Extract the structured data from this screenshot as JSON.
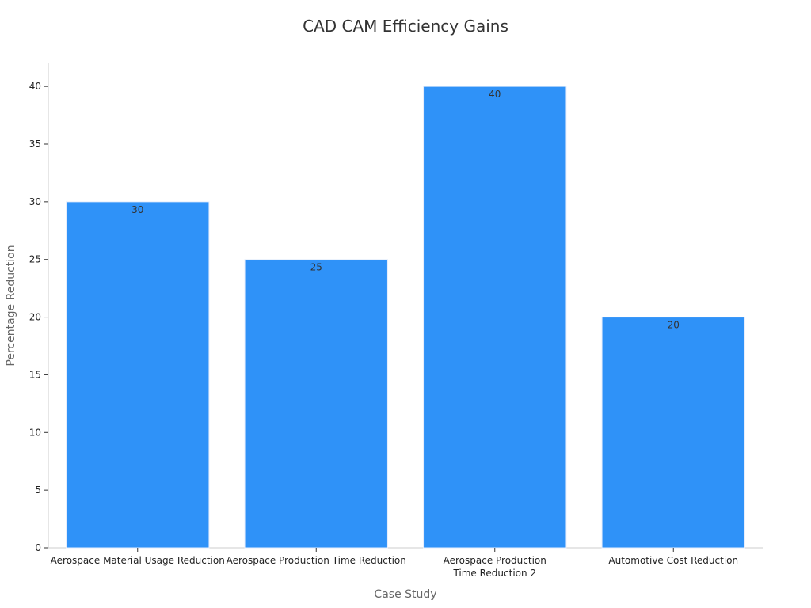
{
  "chart_data": {
    "type": "bar",
    "title": "CAD CAM Efficiency Gains",
    "xlabel": "Case Study",
    "ylabel": "Percentage Reduction",
    "categories": [
      [
        "Aerospace Material Usage Reduction"
      ],
      [
        "Aerospace Production Time Reduction"
      ],
      [
        "Aerospace Production",
        "Time Reduction 2"
      ],
      [
        "Automotive Cost Reduction"
      ]
    ],
    "values": [
      30,
      25,
      40,
      20
    ],
    "ylim": [
      0,
      42
    ],
    "yticks": [
      0,
      5,
      10,
      15,
      20,
      25,
      30,
      35,
      40
    ],
    "bar_color": "#2f92f8",
    "grid": false,
    "legend": "none"
  }
}
